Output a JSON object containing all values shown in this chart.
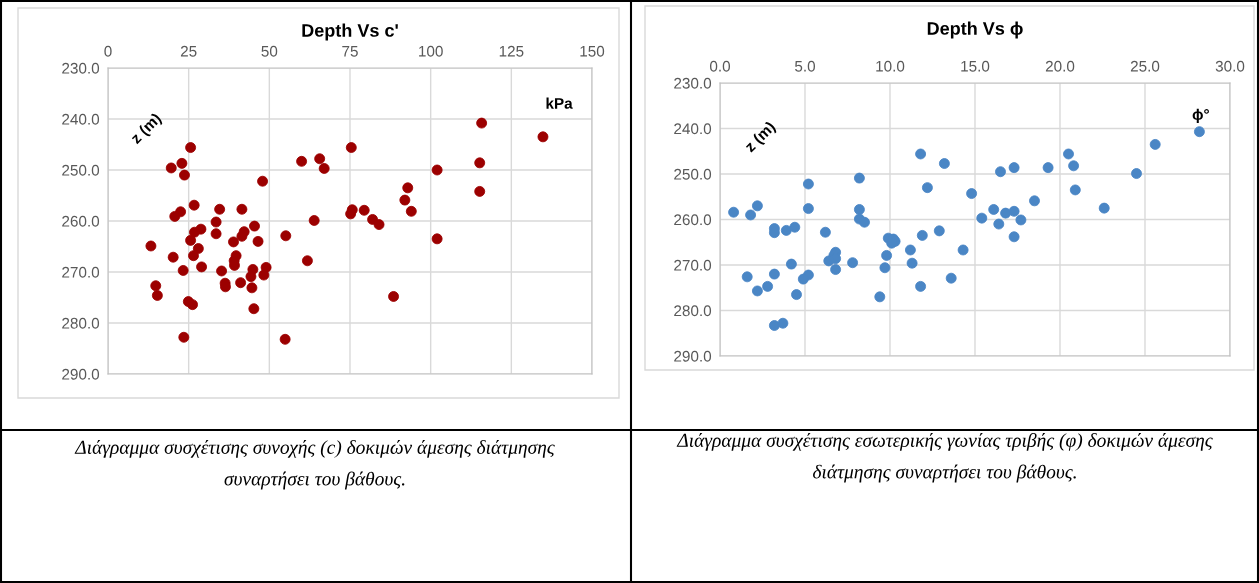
{
  "chart_data": [
    {
      "type": "scatter",
      "title": "Depth Vs c'",
      "xlabel": "kPa",
      "ylabel": "z (m)",
      "annotations": [
        "Διάγραμμα συσχέτισης συνοχής (c) δοκιμών άμεσης διάτμησης συναρτήσει του βάθους."
      ],
      "xlim": [
        0,
        150
      ],
      "xticks": [
        0,
        25,
        50,
        75,
        100,
        125,
        150
      ],
      "ylim": [
        290,
        230
      ],
      "yticks": [
        {
          "value": 230,
          "label": "230.0"
        },
        {
          "value": 240,
          "label": "240.0"
        },
        {
          "value": 250,
          "label": "250.0"
        },
        {
          "value": 260,
          "label": "260.0"
        },
        {
          "value": 270,
          "label": "270.0"
        },
        {
          "value": 280,
          "label": "280.0"
        },
        {
          "value": 290,
          "label": "290.0"
        }
      ],
      "grid": true,
      "marker": "circle",
      "legend": false,
      "series": [
        {
          "color": "#9c0000",
          "x": [
            115.8,
            134.8,
            25.6,
            75.4,
            19.6,
            22.9,
            23.7,
            60.0,
            65.6,
            67.0,
            102.0,
            115.2,
            115.2,
            47.9,
            92.9,
            92.0,
            94.0,
            26.7,
            34.6,
            41.5,
            75.7,
            75.2,
            79.4,
            82.0,
            84.0,
            63.9,
            22.5,
            20.7,
            33.5,
            33.5,
            45.4,
            42.2,
            41.5,
            28.8,
            26.8,
            25.6,
            38.9,
            46.5,
            55.1,
            102.0,
            13.3,
            28.0,
            26.5,
            20.2,
            39.7,
            39.1,
            39.2,
            61.8,
            29.0,
            23.3,
            35.2,
            44.9,
            49.0,
            48.3,
            44.3,
            36.3,
            36.4,
            41.1,
            44.6,
            14.8,
            15.3,
            24.9,
            26.2,
            45.2,
            88.5,
            23.5,
            54.9
          ],
          "values": [
            240.8,
            243.5,
            245.6,
            245.6,
            249.6,
            248.7,
            251.0,
            248.3,
            247.8,
            249.7,
            250.0,
            248.6,
            254.2,
            252.2,
            253.5,
            255.9,
            258.1,
            256.9,
            257.7,
            257.7,
            257.8,
            258.6,
            257.9,
            259.7,
            260.7,
            259.9,
            258.2,
            259.1,
            260.2,
            262.5,
            261.0,
            262.1,
            263.0,
            261.6,
            262.2,
            263.8,
            264.1,
            264.0,
            262.9,
            263.5,
            264.9,
            265.4,
            266.8,
            267.1,
            266.8,
            267.8,
            268.7,
            267.8,
            269.0,
            269.7,
            269.8,
            269.5,
            269.1,
            270.6,
            270.9,
            272.2,
            272.9,
            272.1,
            273.1,
            272.7,
            274.6,
            275.8,
            276.4,
            277.2,
            274.8,
            282.8,
            283.2
          ]
        }
      ]
    },
    {
      "type": "scatter",
      "title": "Depth Vs ϕ",
      "xlabel": "ϕ°",
      "ylabel": "z (m)",
      "annotations": [
        "Διάγραμμα συσχέτισης εσωτερικής γωνίας τριβής (φ) δοκιμών άμεσης διάτμησης συναρτήσει του βάθους."
      ],
      "xlim": [
        0,
        30
      ],
      "xticks": [
        {
          "value": 0,
          "label": "0.0"
        },
        {
          "value": 5,
          "label": "5.0"
        },
        {
          "value": 10,
          "label": "10.0"
        },
        {
          "value": 15,
          "label": "15.0"
        },
        {
          "value": 20,
          "label": "20.0"
        },
        {
          "value": 25,
          "label": "25.0"
        },
        {
          "value": 30,
          "label": "30.0"
        }
      ],
      "ylim": [
        290,
        230
      ],
      "yticks": [
        {
          "value": 230,
          "label": "230.0"
        },
        {
          "value": 240,
          "label": "240.0"
        },
        {
          "value": 250,
          "label": "250.0"
        },
        {
          "value": 260,
          "label": "260.0"
        },
        {
          "value": 270,
          "label": "270.0"
        },
        {
          "value": 280,
          "label": "280.0"
        },
        {
          "value": 290,
          "label": "290.0"
        }
      ],
      "grid": true,
      "marker": "circle",
      "legend": false,
      "series": [
        {
          "color": "#4a86c5",
          "x": [
            28.2,
            25.6,
            11.8,
            13.2,
            20.5,
            20.8,
            20.9,
            16.5,
            17.3,
            19.3,
            24.5,
            5.2,
            8.2,
            12.2,
            14.8,
            18.5,
            22.6,
            0.8,
            1.8,
            2.2,
            5.2,
            8.2,
            8.2,
            8.5,
            15.4,
            16.1,
            16.8,
            17.3,
            17.7,
            16.4,
            17.3,
            3.2,
            3.2,
            3.9,
            4.4,
            6.2,
            12.9,
            11.9,
            9.9,
            10.2,
            10.3,
            10.1,
            11.2,
            14.3,
            9.8,
            6.8,
            6.7,
            6.8,
            6.4,
            7.8,
            4.2,
            11.3,
            9.7,
            6.8,
            3.2,
            5.2,
            4.9,
            1.6,
            13.6,
            2.8,
            2.2,
            11.8,
            4.5,
            9.4,
            3.2,
            3.7
          ],
          "values": [
            240.7,
            243.5,
            245.6,
            247.7,
            245.6,
            248.2,
            253.5,
            249.5,
            248.6,
            248.6,
            249.9,
            252.2,
            250.9,
            253.0,
            254.3,
            255.9,
            257.5,
            258.4,
            259.0,
            257.0,
            257.6,
            257.8,
            259.9,
            260.6,
            259.7,
            257.8,
            258.6,
            258.2,
            260.1,
            261.0,
            263.8,
            262.0,
            262.9,
            262.4,
            261.7,
            262.8,
            262.5,
            263.5,
            264.1,
            264.3,
            264.8,
            265.2,
            266.7,
            266.7,
            267.9,
            267.2,
            267.9,
            268.6,
            269.1,
            269.5,
            269.8,
            269.6,
            270.6,
            271.0,
            272.0,
            272.2,
            273.1,
            272.6,
            272.9,
            274.7,
            275.7,
            274.7,
            276.5,
            277.0,
            283.3,
            282.8
          ]
        }
      ]
    }
  ]
}
